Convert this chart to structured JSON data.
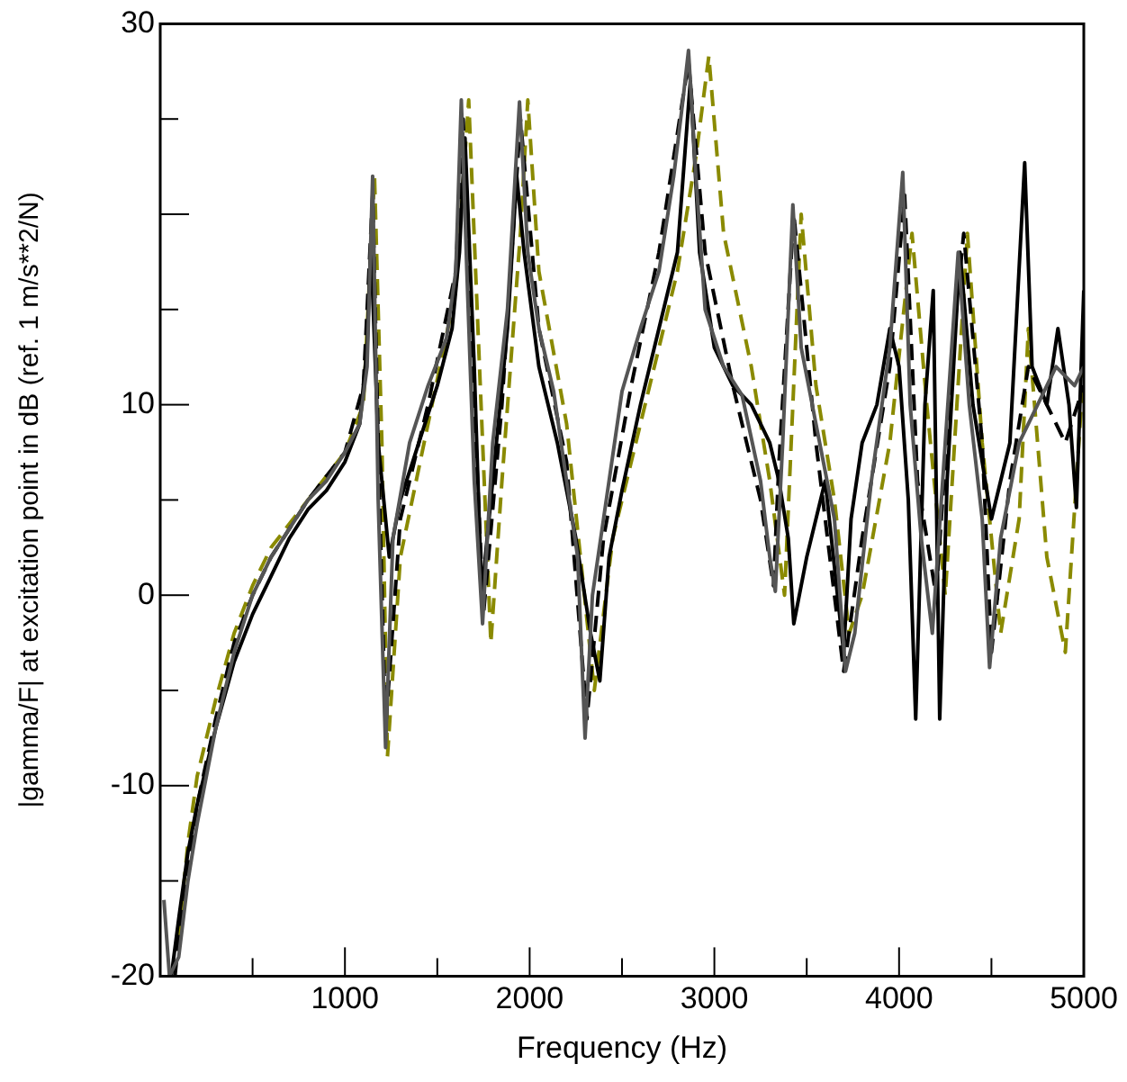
{
  "chart_data": {
    "type": "line",
    "xlabel": "Frequency (Hz)",
    "ylabel": "|gamma/F| at excitation point in dB (ref. 1 m/s**2/N)",
    "xlim": [
      0,
      5000
    ],
    "xticks": [
      {
        "value": 500,
        "label": null
      },
      1000,
      {
        "value": 1500,
        "label": null
      },
      2000,
      {
        "value": 2500,
        "label": null
      },
      3000,
      {
        "value": 3500,
        "label": null
      },
      4000,
      {
        "value": 4500,
        "label": null
      },
      5000
    ],
    "ylim": [
      -20,
      30
    ],
    "yticks": [
      -20,
      {
        "value": -15,
        "label": null
      },
      -10,
      {
        "value": -5,
        "label": null
      },
      0,
      {
        "value": 5,
        "label": null
      },
      10,
      {
        "value": 15,
        "label": null
      },
      {
        "value": 20,
        "label": null
      },
      {
        "value": 25,
        "label": null
      },
      30
    ],
    "grid": false,
    "legend": false,
    "series": [
      {
        "color": "#555555",
        "line_style": "solid",
        "x": [
          20,
          50,
          100,
          150,
          200,
          300,
          400,
          500,
          600,
          700,
          800,
          900,
          1000,
          1080,
          1120,
          1150,
          1180,
          1220,
          1260,
          1350,
          1450,
          1550,
          1600,
          1630,
          1660,
          1700,
          1745,
          1800,
          1880,
          1945,
          1990,
          2050,
          2130,
          2200,
          2260,
          2300,
          2340,
          2400,
          2500,
          2600,
          2700,
          2780,
          2830,
          2860,
          2900,
          2950,
          3050,
          3150,
          3250,
          3300,
          3330,
          3370,
          3425,
          3470,
          3550,
          3650,
          3710,
          3760,
          3850,
          3950,
          4020,
          4060,
          4120,
          4180,
          4250,
          4320,
          4380,
          4450,
          4490,
          4550,
          4650,
          4750,
          4850,
          4950,
          5000
        ],
        "values": [
          -16,
          -20,
          -19,
          -15,
          -12,
          -7,
          -3,
          0,
          2,
          3.5,
          5,
          6,
          7.5,
          9,
          12,
          22,
          5,
          -8,
          3,
          8,
          11,
          13.5,
          17,
          26,
          17,
          6,
          -1.5,
          8,
          15,
          25.9,
          18,
          14,
          10.7,
          6,
          2,
          -7.5,
          0,
          4,
          10.7,
          14,
          17,
          22,
          26,
          28.6,
          22,
          15,
          12,
          10.5,
          6,
          2,
          0.2,
          8,
          20.5,
          13,
          9,
          4,
          -4,
          -2,
          6,
          13,
          22.2,
          10,
          3,
          -2,
          8,
          18,
          10,
          4,
          -3.8,
          3,
          8,
          10,
          12,
          11,
          12
        ]
      },
      {
        "color": "#000000",
        "line_style": "solid",
        "x": [
          60,
          100,
          150,
          200,
          300,
          400,
          500,
          600,
          700,
          800,
          900,
          1000,
          1080,
          1120,
          1140,
          1180,
          1240,
          1300,
          1400,
          1500,
          1580,
          1620,
          1650,
          1700,
          1740,
          1800,
          1880,
          1930,
          1970,
          2050,
          2150,
          2250,
          2330,
          2380,
          2430,
          2500,
          2600,
          2700,
          2800,
          2870,
          2920,
          3000,
          3100,
          3200,
          3300,
          3350,
          3400,
          3430,
          3500,
          3600,
          3700,
          3740,
          3800,
          3880,
          3950,
          4000,
          4050,
          4090,
          4140,
          4185,
          4220,
          4260,
          4330,
          4400,
          4500,
          4600,
          4680,
          4720,
          4800,
          4860,
          4920,
          4960,
          5000
        ],
        "values": [
          -20,
          -17,
          -13.5,
          -11,
          -7,
          -3.5,
          -1,
          1,
          3,
          4.5,
          5.5,
          7,
          9,
          13,
          18.5,
          8,
          2,
          5,
          8,
          11,
          14,
          18,
          24,
          12,
          0,
          6,
          14,
          22,
          18,
          12,
          8,
          3,
          -2,
          -4.5,
          2,
          5.5,
          10,
          14,
          18,
          27,
          18,
          13,
          11,
          10,
          8,
          6,
          3,
          -1.5,
          2,
          6,
          -3,
          4,
          8,
          10,
          14,
          12,
          5,
          -6.5,
          10,
          16,
          -6.5,
          6,
          18,
          10,
          4,
          8,
          22.7,
          12,
          10,
          14,
          10,
          4.6,
          16
        ]
      },
      {
        "color": "#000000",
        "line_style": "dashed",
        "x": [
          80,
          120,
          200,
          300,
          400,
          500,
          600,
          800,
          1000,
          1100,
          1150,
          1190,
          1220,
          1300,
          1450,
          1600,
          1640,
          1700,
          1750,
          1850,
          1950,
          2050,
          2200,
          2310,
          2400,
          2550,
          2700,
          2860,
          2950,
          3100,
          3250,
          3320,
          3350,
          3430,
          3550,
          3700,
          3800,
          3950,
          4030,
          4100,
          4200,
          4300,
          4350,
          4450,
          4500,
          4600,
          4700,
          4800,
          4900,
          5000
        ],
        "values": [
          -20,
          -16,
          -11,
          -6.5,
          -2.5,
          0,
          2,
          5,
          7.5,
          11,
          21,
          4,
          -7,
          4,
          10,
          17,
          25,
          10,
          -1,
          10,
          25,
          14,
          7,
          -6.5,
          3,
          11,
          18,
          28,
          18,
          11,
          5,
          0.5,
          7,
          20,
          8,
          -4,
          3,
          12,
          21,
          6,
          0,
          14,
          19,
          8,
          -3,
          6,
          12,
          10,
          8,
          11
        ]
      },
      {
        "color": "#8a8a00",
        "line_style": "dashed",
        "x": [
          100,
          150,
          200,
          300,
          400,
          500,
          600,
          800,
          1000,
          1100,
          1160,
          1200,
          1230,
          1300,
          1450,
          1600,
          1670,
          1720,
          1790,
          1850,
          1950,
          1990,
          2050,
          2200,
          2350,
          2450,
          2600,
          2800,
          2900,
          2970,
          3050,
          3200,
          3300,
          3380,
          3470,
          3550,
          3650,
          3730,
          3800,
          3950,
          4070,
          4150,
          4250,
          4370,
          4450,
          4550,
          4650,
          4700,
          4800,
          4900,
          5000
        ],
        "values": [
          -18,
          -13,
          -9.5,
          -5.5,
          -2,
          0.5,
          2.5,
          5,
          7.5,
          10,
          22,
          8,
          -8.5,
          2,
          9,
          16,
          26,
          14,
          -2.5,
          6,
          19,
          26,
          17,
          9,
          -5,
          3,
          9,
          17,
          23,
          28.3,
          19,
          12,
          6,
          0,
          20,
          11,
          5,
          -2,
          0,
          8,
          19,
          10,
          0,
          19,
          8,
          -2,
          4,
          14,
          2,
          -3,
          12
        ]
      }
    ]
  }
}
